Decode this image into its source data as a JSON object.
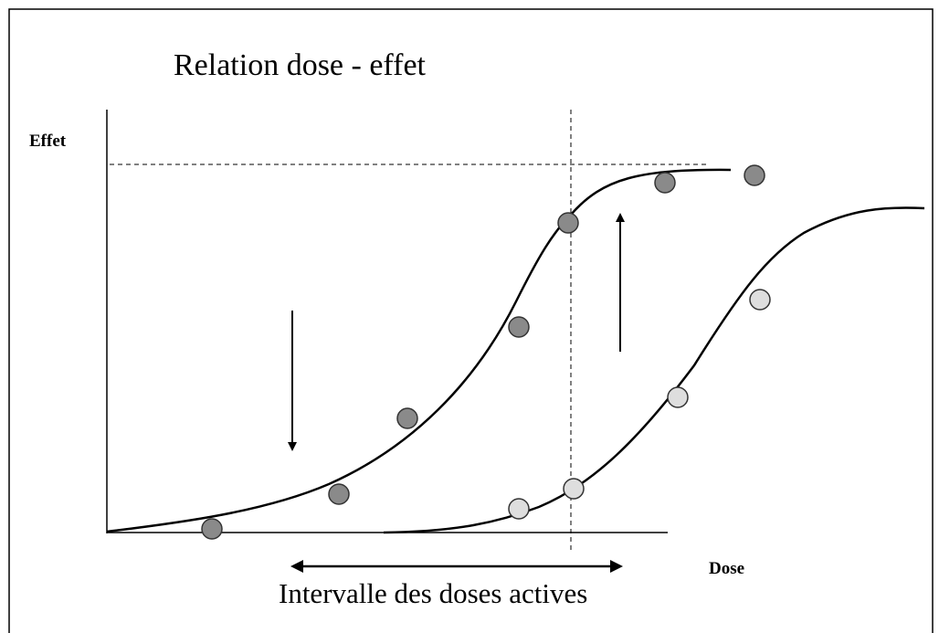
{
  "title": "Relation dose - effet",
  "y_label": "Effet",
  "x_label": "Dose",
  "interval_label": "Intervalle des doses actives"
}
